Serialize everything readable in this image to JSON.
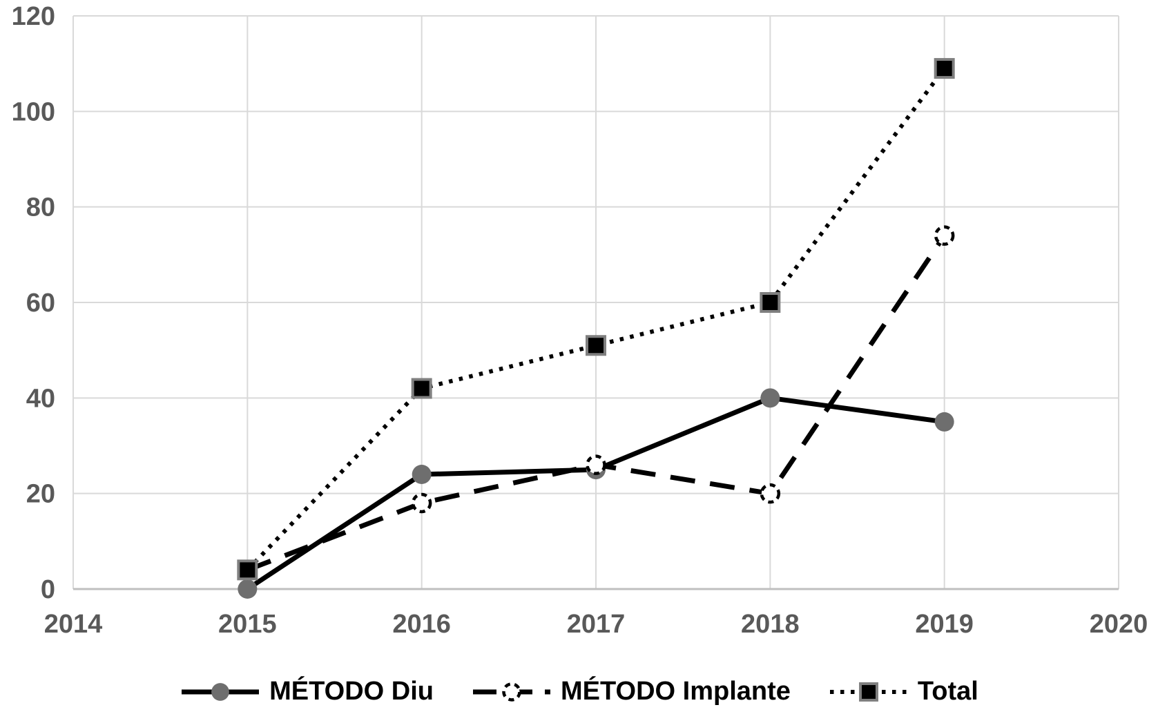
{
  "figure": {
    "background": "#FFFFFF"
  },
  "chart_data": {
    "type": "line",
    "title": "",
    "xlabel": "",
    "ylabel": "",
    "x": [
      2015,
      2016,
      2017,
      2018,
      2019
    ],
    "xlim": [
      2014,
      2020
    ],
    "ylim": [
      0,
      120
    ],
    "x_ticks": [
      "2014",
      "2015",
      "2016",
      "2017",
      "2018",
      "2019",
      "2020"
    ],
    "x_tick_values": [
      2014,
      2015,
      2016,
      2017,
      2018,
      2019,
      2020
    ],
    "y_ticks": [
      0,
      20,
      40,
      60,
      80,
      100,
      120
    ],
    "grid": true,
    "legend_position": "bottom",
    "series": [
      {
        "name": "MÉTODO Diu",
        "values": [
          0,
          24,
          25,
          40,
          35
        ],
        "line_style": "solid",
        "line_color": "#000000",
        "marker": "filled-circle",
        "marker_fill": "#6E6E6E",
        "marker_stroke": "#6E6E6E"
      },
      {
        "name": "MÉTODO Implante",
        "values": [
          4,
          18,
          26,
          20,
          74
        ],
        "line_style": "dashed",
        "line_color": "#000000",
        "marker": "open-circle",
        "marker_fill": "#FFFFFF",
        "marker_stroke": "#000000"
      },
      {
        "name": "Total",
        "values": [
          4,
          42,
          51,
          60,
          109
        ],
        "line_style": "dotted",
        "line_color": "#000000",
        "marker": "filled-square",
        "marker_fill": "#000000",
        "marker_stroke": "#7F7F7F"
      }
    ],
    "colors": {
      "gridline": "#D9D9D9",
      "axis_line": "#BFBFBF",
      "tick_label": "#595959",
      "legend_text": "#000000"
    }
  }
}
